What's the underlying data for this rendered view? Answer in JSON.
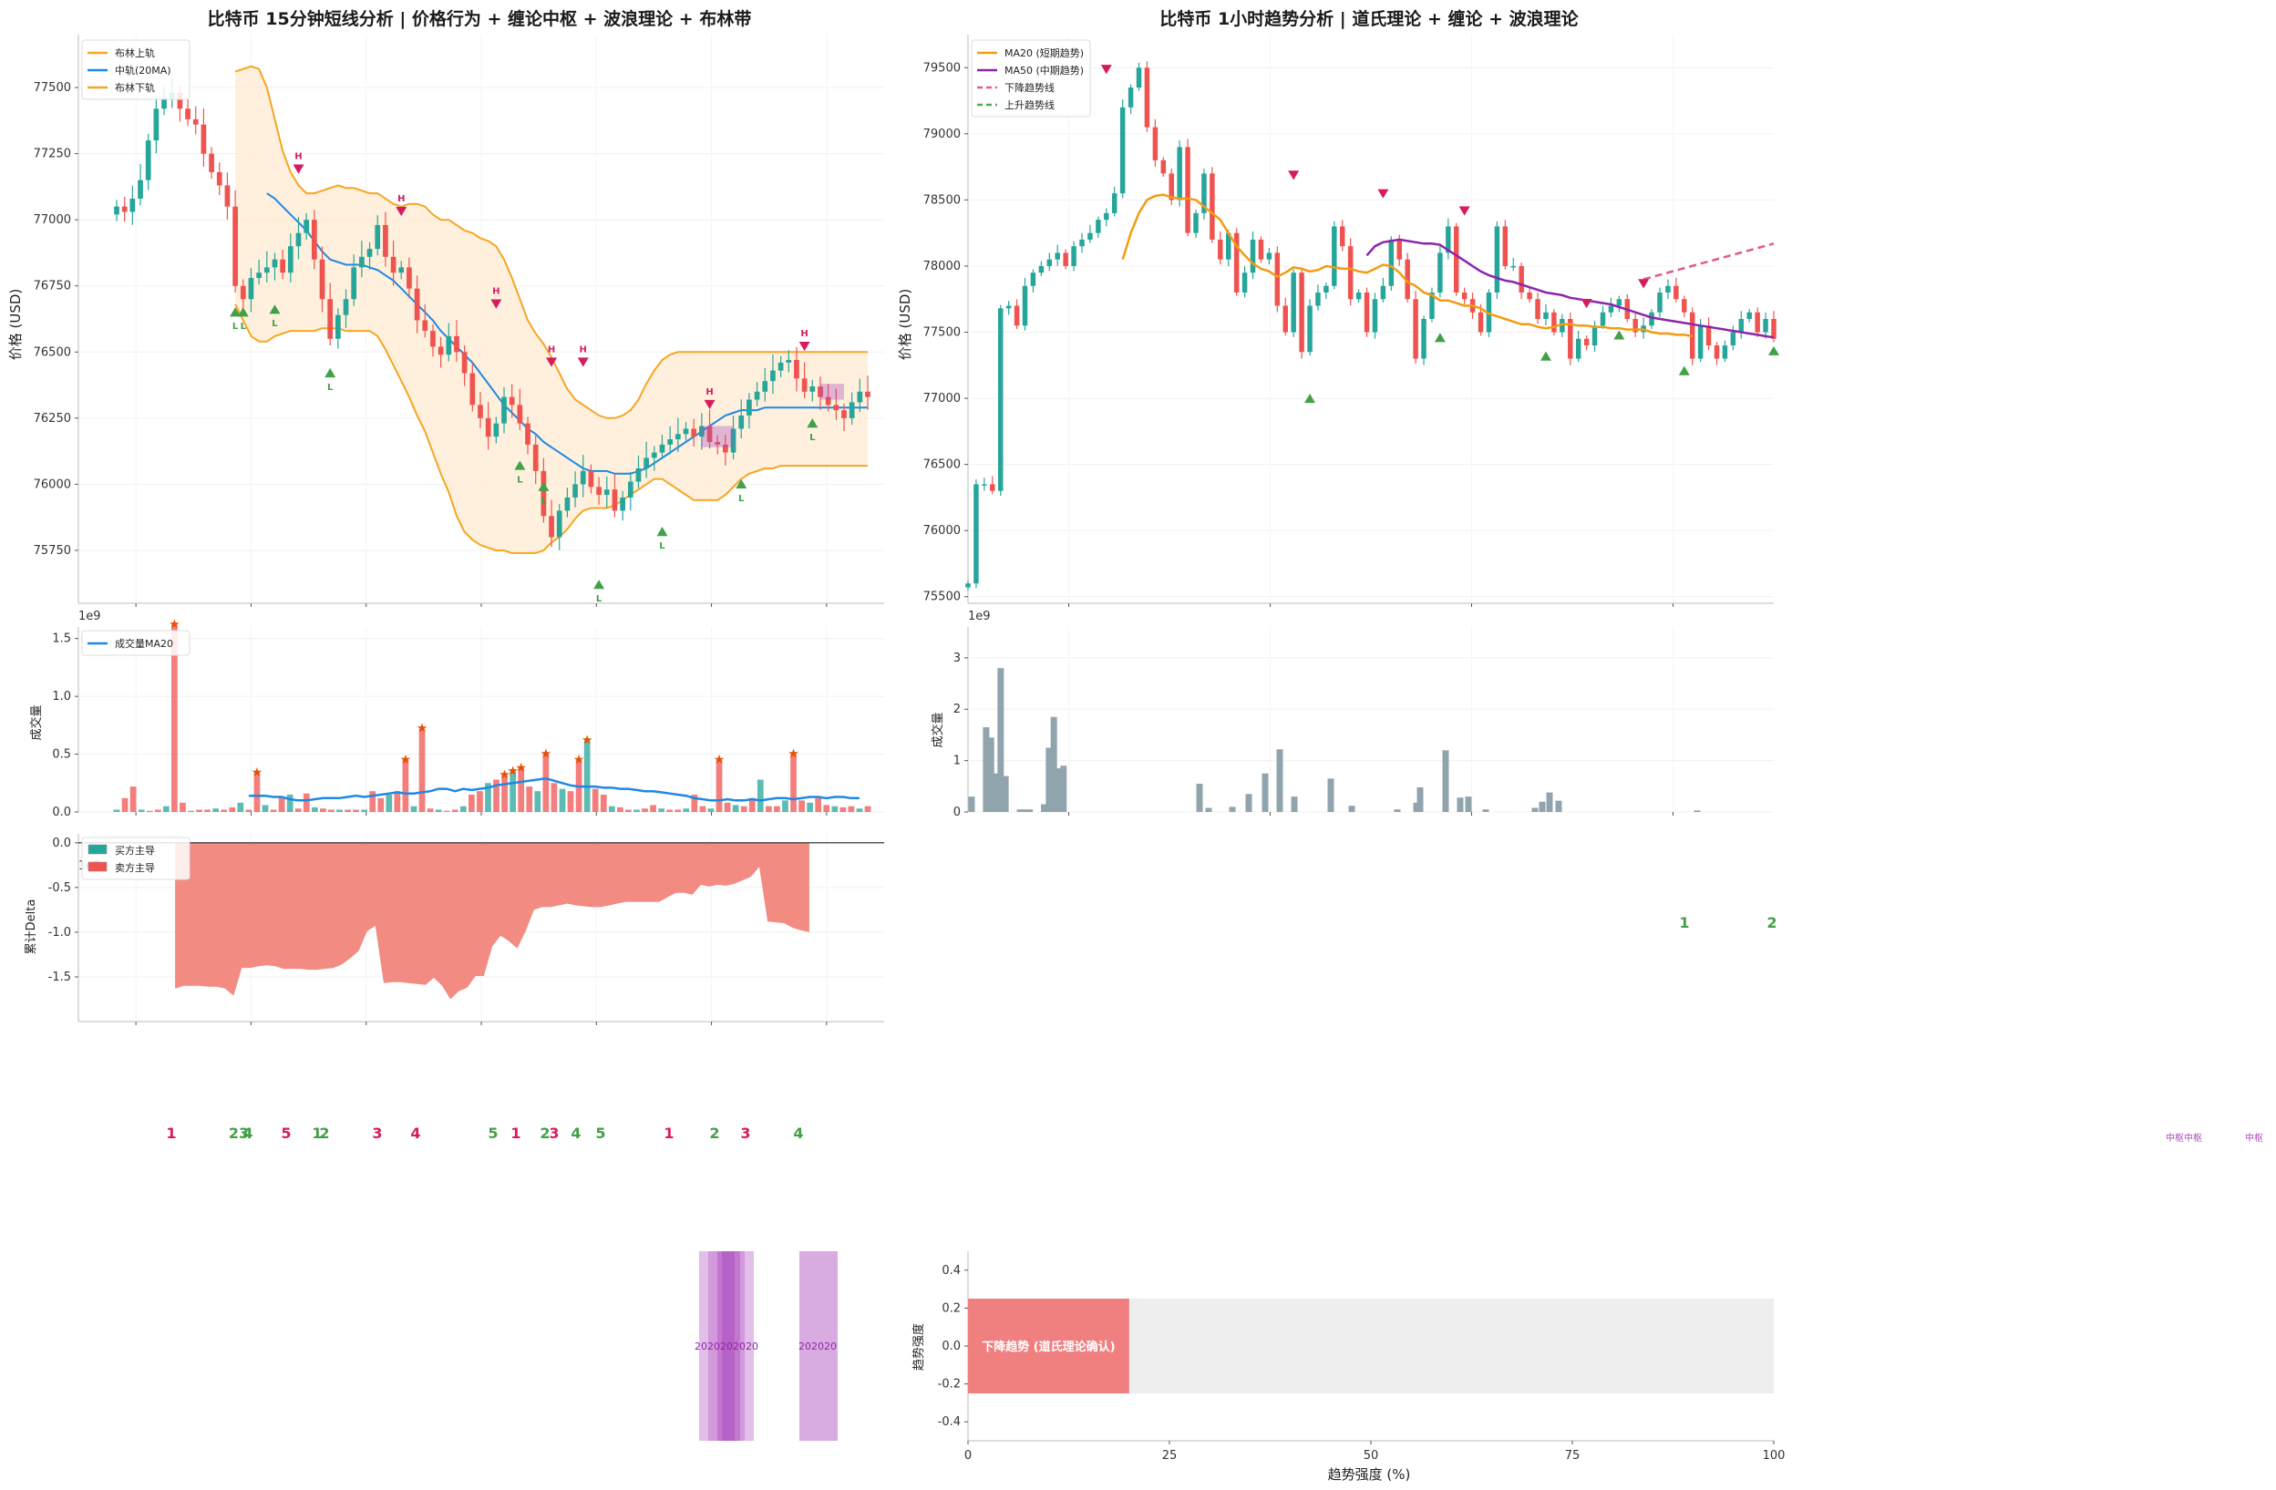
{
  "colors": {
    "bull": "#26a69a",
    "bear": "#ef5350",
    "boll_band": "#f5a623",
    "boll_fill": "#fdebd0",
    "boll_mid": "#1e88e5",
    "ma20": "#f39c12",
    "ma50": "#8e24aa",
    "down_trend": "#e05a8a",
    "up_trend": "#4caf50",
    "high_marker": "#d81b60",
    "low_marker": "#43a047",
    "volume_grey": "#90a4ae",
    "volume_ma": "#1e88e5",
    "delta_fill": "#f28b82",
    "pivot": "#ab47bc",
    "trend_bar": "#f08080",
    "trend_bg": "#eeeeee"
  },
  "left": {
    "title": "比特币 15分钟短线分析 | 价格行为 + 缠论中枢 + 波浪理论 + 布林带",
    "price_ylabel": "价格 (USD)",
    "legend": [
      "布林上轨",
      "中轨(20MA)",
      "布林下轨"
    ],
    "volume_ylabel": "成交量",
    "volume_exponent": "1e9",
    "volume_legend": "成交量MA20",
    "delta_ylabel": "累计Delta",
    "delta_exponent": "1e9",
    "delta_legend": [
      "买方主导",
      "卖方主导"
    ],
    "high_label": "H",
    "low_label": "L"
  },
  "right": {
    "title": "比特币 1小时趋势分析 | 道氏理论 + 缠论 + 波浪理论",
    "price_ylabel": "价格 (USD)",
    "legend": [
      "MA20 (短期趋势)",
      "MA50 (中期趋势)",
      "下降趋势线",
      "上升趋势线"
    ],
    "volume_ylabel": "成交量",
    "volume_exponent": "1e9",
    "wave_labels_right": [
      "1",
      "2"
    ],
    "pivot_text_a": "中枢中枢",
    "pivot_text_b": "中枢"
  },
  "wave_row": {
    "labels": [
      "1",
      "23",
      "4",
      "5",
      "1",
      "2",
      "3",
      "4",
      "5",
      "1",
      "2",
      "3",
      "4",
      "5",
      "1",
      "2",
      "3",
      "4"
    ],
    "label_colors": [
      "bear",
      "bull",
      "bull",
      "bear",
      "bull",
      "bull",
      "bear",
      "bear",
      "bull",
      "bear",
      "bull",
      "bear",
      "bull",
      "bull",
      "bear",
      "bull",
      "bear",
      "bull"
    ]
  },
  "pivot_strips": {
    "label_a": "2020202020",
    "label_b": "202020"
  },
  "chart_data": [
    {
      "type": "candlestick",
      "title": "比特币 15分钟短线分析 | 价格行为 + 缠论中枢 + 波浪理论 + 布林带",
      "ylabel": "价格 (USD)",
      "ylim": [
        75550,
        77700
      ],
      "yticks": [
        75750,
        76000,
        76250,
        76500,
        76750,
        77000,
        77250,
        77500
      ],
      "n": 96,
      "closes": [
        77050,
        77030,
        77080,
        77150,
        77300,
        77420,
        77460,
        77480,
        77420,
        77380,
        77360,
        77250,
        77180,
        77130,
        77050,
        76750,
        76700,
        76780,
        76800,
        76820,
        76850,
        76800,
        76900,
        76950,
        77000,
        76850,
        76700,
        76550,
        76640,
        76700,
        76820,
        76860,
        76890,
        76980,
        76860,
        76800,
        76820,
        76740,
        76620,
        76580,
        76520,
        76490,
        76560,
        76500,
        76420,
        76300,
        76250,
        76180,
        76230,
        76330,
        76300,
        76230,
        76150,
        76050,
        75880,
        75800,
        75900,
        75950,
        76000,
        76050,
        75990,
        75960,
        75980,
        75900,
        75950,
        76010,
        76060,
        76100,
        76120,
        76150,
        76170,
        76190,
        76210,
        76180,
        76220,
        76160,
        76150,
        76120,
        76210,
        76260,
        76320,
        76350,
        76390,
        76430,
        76460,
        76470,
        76400,
        76350,
        76370,
        76330,
        76300,
        76280,
        76250,
        76310,
        76350,
        76330
      ],
      "boll_upper_start": 15,
      "boll_upper": [
        77560,
        77570,
        77580,
        77570,
        77500,
        77380,
        77260,
        77180,
        77130,
        77100,
        77100,
        77110,
        77120,
        77130,
        77120,
        77120,
        77110,
        77100,
        77100,
        77080,
        77060,
        77050,
        77060,
        77060,
        77050,
        77020,
        77000,
        77000,
        76980,
        76960,
        76950,
        76930,
        76920,
        76900,
        76850,
        76780,
        76700,
        76620,
        76570,
        76530,
        76480,
        76420,
        76360,
        76320,
        76300,
        76280,
        76260,
        76250,
        76250,
        76260,
        76280,
        76320,
        76380,
        76430,
        76470,
        76490,
        76500,
        76500,
        76500,
        76500,
        76500,
        76500,
        76500,
        76500,
        76500,
        76500,
        76500,
        76500,
        76500,
        76500,
        76500,
        76500,
        76500,
        76500,
        76500,
        76500,
        76500,
        76500,
        76500,
        76500,
        76500
      ],
      "boll_lower": [
        76680,
        76620,
        76560,
        76540,
        76540,
        76560,
        76570,
        76580,
        76580,
        76580,
        76580,
        76590,
        76590,
        76590,
        76580,
        76580,
        76580,
        76580,
        76560,
        76510,
        76450,
        76390,
        76330,
        76260,
        76200,
        76120,
        76040,
        75970,
        75880,
        75820,
        75790,
        75770,
        75760,
        75750,
        75750,
        75740,
        75740,
        75740,
        75740,
        75750,
        75780,
        75800,
        75830,
        75870,
        75900,
        75910,
        75910,
        75910,
        75920,
        75940,
        75960,
        75980,
        76000,
        76020,
        76020,
        76000,
        75980,
        75960,
        75940,
        75940,
        75940,
        75940,
        75960,
        75990,
        76020,
        76040,
        76050,
        76060,
        76060,
        76070,
        76070,
        76070,
        76070,
        76070,
        76070,
        76070,
        76070,
        76070,
        76070,
        76070,
        76070
      ],
      "boll_mid_start": 19,
      "boll_mid": [
        77100,
        77080,
        77050,
        77020,
        76990,
        76960,
        76920,
        76880,
        76850,
        76840,
        76830,
        76830,
        76830,
        76820,
        76810,
        76790,
        76770,
        76740,
        76710,
        76680,
        76650,
        76620,
        76580,
        76550,
        76520,
        76490,
        76460,
        76420,
        76380,
        76340,
        76300,
        76270,
        76240,
        76210,
        76190,
        76160,
        76140,
        76120,
        76100,
        76080,
        76060,
        76050,
        76050,
        76050,
        76040,
        76040,
        76040,
        76050,
        76060,
        76080,
        76100,
        76120,
        76140,
        76160,
        76180,
        76200,
        76220,
        76240,
        76260,
        76270,
        76280,
        76280,
        76280,
        76290,
        76290,
        76290,
        76290,
        76290,
        76290,
        76290,
        76290,
        76290,
        76290,
        76290,
        76290,
        76290,
        76290
      ],
      "high_points": [
        [
          23,
          77160
        ],
        [
          36,
          77000
        ],
        [
          48,
          76650
        ],
        [
          55,
          76430
        ],
        [
          59,
          76430
        ],
        [
          75,
          76270
        ],
        [
          87,
          76490
        ]
      ],
      "low_points": [
        [
          15,
          76690
        ],
        [
          16,
          76690
        ],
        [
          20,
          76700
        ],
        [
          27,
          76460
        ],
        [
          51,
          76110
        ],
        [
          54,
          76030
        ],
        [
          61,
          75660
        ],
        [
          69,
          75860
        ],
        [
          79,
          76040
        ],
        [
          88,
          76270
        ]
      ]
    },
    {
      "type": "bar",
      "title": "",
      "ylabel": "成交量",
      "exponent": "1e9",
      "ylim": [
        0,
        1.6
      ],
      "yticks": [
        0.0,
        0.5,
        1.0,
        1.5
      ],
      "values": [
        0.02,
        0.12,
        0.22,
        0.02,
        0.01,
        0.02,
        0.05,
        1.62,
        0.08,
        0.01,
        0.02,
        0.02,
        0.03,
        0.02,
        0.04,
        0.08,
        0.02,
        0.34,
        0.06,
        0.02,
        0.13,
        0.15,
        0.03,
        0.16,
        0.04,
        0.03,
        0.02,
        0.02,
        0.02,
        0.02,
        0.02,
        0.18,
        0.12,
        0.15,
        0.18,
        0.45,
        0.05,
        0.72,
        0.03,
        0.02,
        0.01,
        0.02,
        0.05,
        0.15,
        0.18,
        0.25,
        0.28,
        0.32,
        0.35,
        0.38,
        0.22,
        0.18,
        0.5,
        0.25,
        0.2,
        0.18,
        0.45,
        0.62,
        0.2,
        0.15,
        0.05,
        0.04,
        0.02,
        0.02,
        0.03,
        0.06,
        0.03,
        0.02,
        0.02,
        0.03,
        0.15,
        0.05,
        0.03,
        0.45,
        0.08,
        0.06,
        0.05,
        0.12,
        0.28,
        0.05,
        0.05,
        0.1,
        0.5,
        0.1,
        0.08,
        0.12,
        0.06,
        0.05,
        0.04,
        0.05,
        0.03,
        0.05
      ],
      "ma20_start": 16,
      "ma20": [
        0.14,
        0.14,
        0.14,
        0.13,
        0.13,
        0.11,
        0.1,
        0.1,
        0.11,
        0.12,
        0.12,
        0.12,
        0.13,
        0.14,
        0.13,
        0.14,
        0.15,
        0.16,
        0.17,
        0.16,
        0.16,
        0.17,
        0.18,
        0.2,
        0.2,
        0.18,
        0.2,
        0.19,
        0.2,
        0.21,
        0.23,
        0.24,
        0.25,
        0.26,
        0.27,
        0.28,
        0.29,
        0.27,
        0.25,
        0.23,
        0.22,
        0.22,
        0.22,
        0.21,
        0.21,
        0.2,
        0.2,
        0.19,
        0.18,
        0.18,
        0.17,
        0.16,
        0.15,
        0.14,
        0.12,
        0.11,
        0.1,
        0.1,
        0.11,
        0.1,
        0.1,
        0.11,
        0.1,
        0.11,
        0.12,
        0.12,
        0.11,
        0.12,
        0.13,
        0.13,
        0.12,
        0.13,
        0.13,
        0.12,
        0.12
      ]
    },
    {
      "type": "area",
      "title": "",
      "ylabel": "累计Delta",
      "exponent": "1e9",
      "ylim": [
        -2.0,
        0.1
      ],
      "yticks": [
        0.0,
        -0.5,
        -1.0,
        -1.5
      ],
      "start": 7,
      "values": [
        -1.63,
        -1.6,
        -1.6,
        -1.6,
        -1.61,
        -1.61,
        -1.63,
        -1.71,
        -1.4,
        -1.4,
        -1.38,
        -1.37,
        -1.38,
        -1.41,
        -1.41,
        -1.41,
        -1.42,
        -1.42,
        -1.41,
        -1.4,
        -1.36,
        -1.29,
        -1.21,
        -0.99,
        -0.93,
        -1.57,
        -1.56,
        -1.56,
        -1.57,
        -1.58,
        -1.59,
        -1.51,
        -1.6,
        -1.75,
        -1.66,
        -1.62,
        -1.49,
        -1.49,
        -1.16,
        -1.04,
        -1.1,
        -1.18,
        -0.99,
        -0.75,
        -0.72,
        -0.72,
        -0.7,
        -0.68,
        -0.7,
        -0.71,
        -0.72,
        -0.72,
        -0.7,
        -0.68,
        -0.66,
        -0.66,
        -0.66,
        -0.66,
        -0.66,
        -0.61,
        -0.56,
        -0.56,
        -0.58,
        -0.47,
        -0.49,
        -0.47,
        -0.48,
        -0.46,
        -0.42,
        -0.38,
        -0.27,
        -0.88,
        -0.89,
        -0.9,
        -0.95,
        -0.98,
        -1.0
      ]
    },
    {
      "type": "candlestick",
      "title": "比特币 1小时趋势分析 | 道氏理论 + 缠论 + 波浪理论",
      "ylabel": "价格 (USD)",
      "ylim": [
        75450,
        79750
      ],
      "yticks": [
        75500,
        76000,
        76500,
        77000,
        77500,
        78000,
        78500,
        79000,
        79500
      ],
      "n": 100,
      "closes": [
        75600,
        76350,
        76350,
        76300,
        77680,
        77700,
        77550,
        77850,
        77950,
        78000,
        78050,
        78100,
        78000,
        78150,
        78200,
        78250,
        78350,
        78400,
        78550,
        79200,
        79350,
        79500,
        79050,
        78800,
        78700,
        78500,
        78900,
        78250,
        78400,
        78700,
        78200,
        78050,
        78250,
        77800,
        77950,
        78200,
        78050,
        78100,
        77700,
        77500,
        77950,
        77350,
        77700,
        77800,
        77850,
        78300,
        78150,
        77750,
        77800,
        77500,
        77750,
        77850,
        78200,
        78050,
        77750,
        77300,
        77600,
        77800,
        78100,
        78300,
        77800,
        77750,
        77650,
        77500,
        77800,
        78300,
        78000,
        78000,
        77800,
        77750,
        77600,
        77650,
        77500,
        77600,
        77300,
        77450,
        77400,
        77550,
        77650,
        77700,
        77750,
        77600,
        77500,
        77550,
        77650,
        77800,
        77850,
        77750,
        77650,
        77300,
        77550,
        77400,
        77300,
        77400,
        77500,
        77600,
        77650,
        77500,
        77600,
        77450
      ],
      "ma20_start": 19,
      "ma20": [
        78050,
        78250,
        78400,
        78500,
        78530,
        78540,
        78520,
        78510,
        78510,
        78500,
        78450,
        78400,
        78350,
        78250,
        78150,
        78080,
        78020,
        77980,
        77960,
        77920,
        77950,
        77990,
        77980,
        77960,
        77970,
        78000,
        77990,
        77980,
        77980,
        77960,
        77950,
        77980,
        78010,
        78000,
        77950,
        77880,
        77850,
        77800,
        77780,
        77740,
        77740,
        77720,
        77700,
        77700,
        77680,
        77640,
        77620,
        77600,
        77580,
        77560,
        77560,
        77540,
        77530,
        77540,
        77560,
        77560,
        77550,
        77550,
        77540,
        77540,
        77530,
        77530,
        77520,
        77520,
        77520,
        77500,
        77490,
        77490,
        77480,
        77480,
        77470
      ],
      "ma50_start": 49,
      "ma50": [
        78080,
        78150,
        78180,
        78190,
        78200,
        78190,
        78180,
        78170,
        78170,
        78160,
        78120,
        78080,
        78040,
        78000,
        77960,
        77930,
        77910,
        77890,
        77880,
        77860,
        77840,
        77820,
        77800,
        77790,
        77780,
        77760,
        77750,
        77740,
        77730,
        77720,
        77710,
        77690,
        77670,
        77650,
        77630,
        77610,
        77600,
        77590,
        77580,
        77570,
        77560,
        77550,
        77540,
        77530,
        77520,
        77510,
        77500,
        77490,
        77480,
        77470,
        77460
      ],
      "high_points": [
        [
          17,
          79520
        ],
        [
          40,
          78720
        ],
        [
          51,
          78580
        ],
        [
          61,
          78450
        ],
        [
          76,
          77750
        ],
        [
          83,
          77900
        ]
      ],
      "low_points": [
        [
          42,
          76980
        ],
        [
          58,
          77440
        ],
        [
          71,
          77300
        ],
        [
          80,
          77460
        ],
        [
          88,
          77190
        ],
        [
          99,
          77340
        ]
      ],
      "down_trendline": [
        [
          83,
          77900
        ],
        [
          99,
          78170
        ]
      ]
    },
    {
      "type": "bar",
      "title": "",
      "ylabel": "成交量",
      "exponent": "1e9",
      "ylim": [
        0,
        3.6
      ],
      "yticks": [
        0,
        1,
        2,
        3
      ],
      "values": [
        0.3,
        0.0,
        0.0,
        1.65,
        1.45,
        0.75,
        2.8,
        0.7,
        0.0,
        0.0,
        0.05,
        0.05,
        0.05,
        0.0,
        0.0,
        0.15,
        1.25,
        1.85,
        0.85,
        0.9,
        0.0,
        0.0,
        0.0,
        0.0,
        0.0,
        0.0,
        0.0,
        0.0,
        0.0,
        0.0,
        0.0,
        0.0,
        0.0,
        0.0,
        0.0,
        0.0,
        0.0,
        0.0,
        0.0,
        0.0,
        0.0,
        0.0,
        0.0,
        0.0,
        0.0,
        0.0,
        0.0,
        0.0,
        0.0,
        0.0,
        0.0,
        0.0,
        0.0,
        0.0,
        0.0,
        0.0,
        0.0,
        0.0,
        0.0,
        0.0,
        0.0,
        0.0,
        0.0,
        0.0,
        0.0,
        0.0,
        0.0,
        0.0,
        0.0,
        0.0,
        0.0,
        0.0,
        0.0,
        0.0,
        0.0,
        0.0,
        0.0,
        0.0,
        0.0,
        0.0,
        0.0,
        0.0,
        0.0,
        0.0,
        0.0,
        0.0,
        0.0,
        0.0,
        0.0,
        0.0,
        0.0,
        0.0,
        0.0,
        0.0,
        0.0,
        0.0,
        0.0,
        0.0,
        0.0,
        0.0
      ]
    },
    {
      "type": "bar",
      "orientation": "horizontal",
      "xlabel": "趋势强度 (%)",
      "ylabel": "趋势强度",
      "xlim": [
        0,
        100
      ],
      "ylim": [
        -0.5,
        0.5
      ],
      "xticks": [
        0,
        25,
        50,
        75,
        100
      ],
      "yticks": [
        0.4,
        0.2,
        0.0,
        -0.2,
        -0.4
      ],
      "value": 20,
      "label": "下降趋势 (道氏理论确认)"
    }
  ]
}
